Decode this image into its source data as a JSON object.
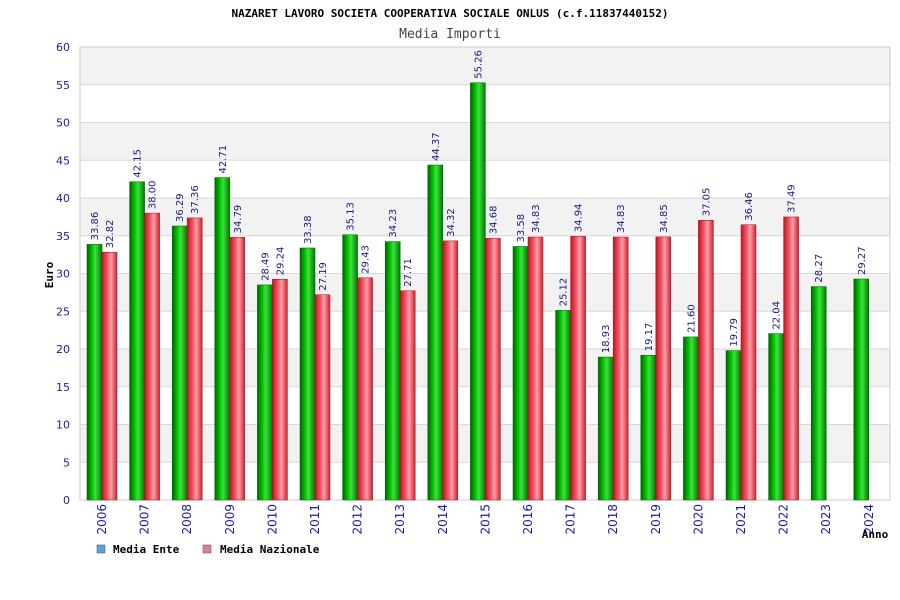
{
  "chart_data": {
    "type": "bar",
    "title": "NAZARET LAVORO SOCIETA COOPERATIVA SOCIALE ONLUS (c.f.11837440152)",
    "subtitle": "Media Importi",
    "xlabel": "Anno",
    "ylabel": "Euro",
    "ylim": [
      0,
      60
    ],
    "yticks": [
      0,
      5,
      10,
      15,
      20,
      25,
      30,
      35,
      40,
      45,
      50,
      55,
      60
    ],
    "grid": true,
    "legend_position": "bottom-left",
    "categories": [
      "2006",
      "2007",
      "2008",
      "2009",
      "2010",
      "2011",
      "2012",
      "2013",
      "2014",
      "2015",
      "2016",
      "2017",
      "2018",
      "2019",
      "2020",
      "2021",
      "2022",
      "2023",
      "2024"
    ],
    "series": [
      {
        "name": "Media Ente",
        "color": "#00b000",
        "legend_color": "#5aa0e8",
        "values": [
          33.86,
          42.15,
          36.29,
          42.71,
          28.49,
          33.38,
          35.13,
          34.23,
          44.37,
          55.26,
          33.58,
          25.12,
          18.93,
          19.17,
          21.6,
          19.79,
          22.04,
          28.27,
          29.27
        ],
        "labels": [
          "33.86",
          "42.15",
          "36.29",
          "42.71",
          "28.49",
          "33.38",
          "35.13",
          "34.23",
          "44.37",
          "55.26",
          "33.58",
          "25.12",
          "18.93",
          "19.17",
          "21.60",
          "19.79",
          "22.04",
          "28.27",
          "29.27"
        ]
      },
      {
        "name": "Media Nazionale",
        "color": "#e03040",
        "legend_color": "#e07aa0",
        "values": [
          32.82,
          38.0,
          37.36,
          34.79,
          29.24,
          27.19,
          29.43,
          27.71,
          34.32,
          34.68,
          34.83,
          34.94,
          34.83,
          34.85,
          37.05,
          36.46,
          37.49,
          null,
          null
        ],
        "labels": [
          "32.82",
          "38.00",
          "37.36",
          "34.79",
          "29.24",
          "27.19",
          "29.43",
          "27.71",
          "34.32",
          "34.68",
          "34.83",
          "34.94",
          "34.83",
          "34.85",
          "37.05",
          "36.46",
          "37.49",
          null,
          null
        ]
      }
    ]
  }
}
